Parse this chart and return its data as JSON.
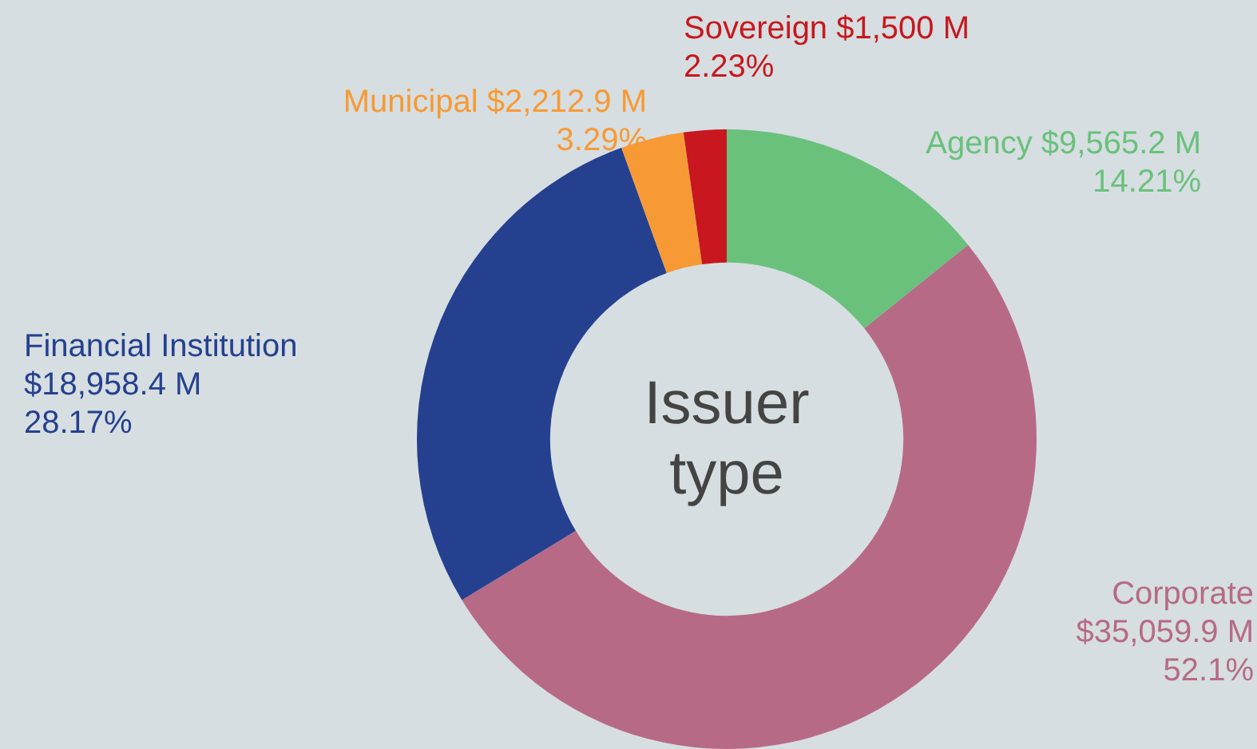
{
  "chart_data": {
    "type": "donut",
    "title": "Issuer type",
    "categories": [
      "Agency",
      "Corporate",
      "Financial Institution",
      "Municipal",
      "Sovereign"
    ],
    "values": [
      9565.2,
      35059.9,
      18958.4,
      2212.9,
      1500
    ],
    "value_labels": [
      "$9,565.2 M\n14.21%",
      "$35,059.9 M\n52.1%",
      "$18,958.4 M\n28.17%",
      "$2,212.9 M\n3.29%",
      "$1,500 M\n2.23%"
    ],
    "colors": [
      "#6ac17c",
      "#b76a86",
      "#25408f",
      "#f79a35",
      "#c8171e"
    ],
    "legend": false
  }
}
